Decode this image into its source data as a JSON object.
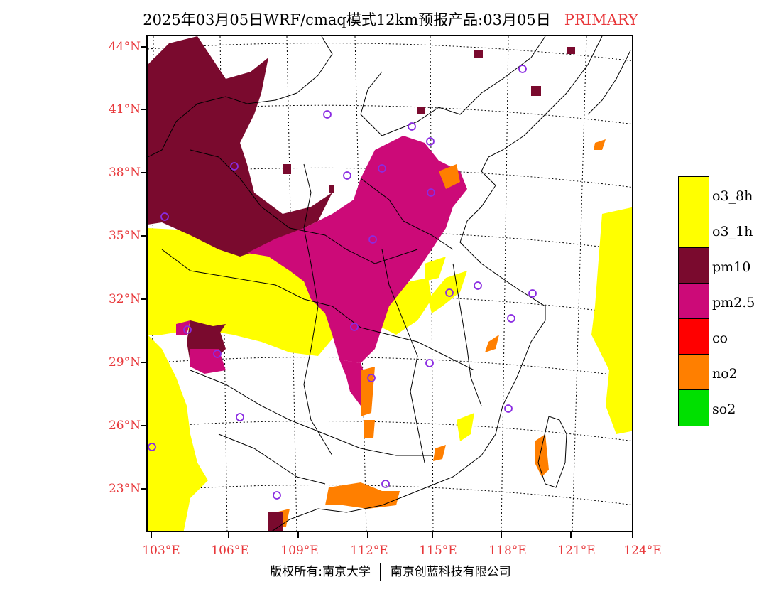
{
  "title": {
    "main": "2025年03月05日WRF/cmaq模式12km预报产品:03月05日",
    "tag": "PRIMARY"
  },
  "axes": {
    "lat_labels": [
      "44°N",
      "41°N",
      "38°N",
      "35°N",
      "32°N",
      "29°N",
      "26°N",
      "23°N"
    ],
    "lon_labels": [
      "103°E",
      "106°E",
      "109°E",
      "112°E",
      "115°E",
      "118°E",
      "121°E",
      "124°E"
    ]
  },
  "legend": {
    "items": [
      {
        "label": "o3_8h",
        "color": "#ffff00"
      },
      {
        "label": "o3_1h",
        "color": "#ffff00"
      },
      {
        "label": "pm10",
        "color": "#7a0a2e"
      },
      {
        "label": "pm2.5",
        "color": "#cc0a78"
      },
      {
        "label": "co",
        "color": "#ff0000"
      },
      {
        "label": "no2",
        "color": "#ff7f00"
      },
      {
        "label": "so2",
        "color": "#00e000"
      }
    ]
  },
  "footer": {
    "left": "版权所有:南京大学",
    "right": "南京创蓝科技有限公司"
  },
  "colors": {
    "label_red": "#e8383b",
    "station_marker": "#8a2be2",
    "boundary": "#000000"
  }
}
